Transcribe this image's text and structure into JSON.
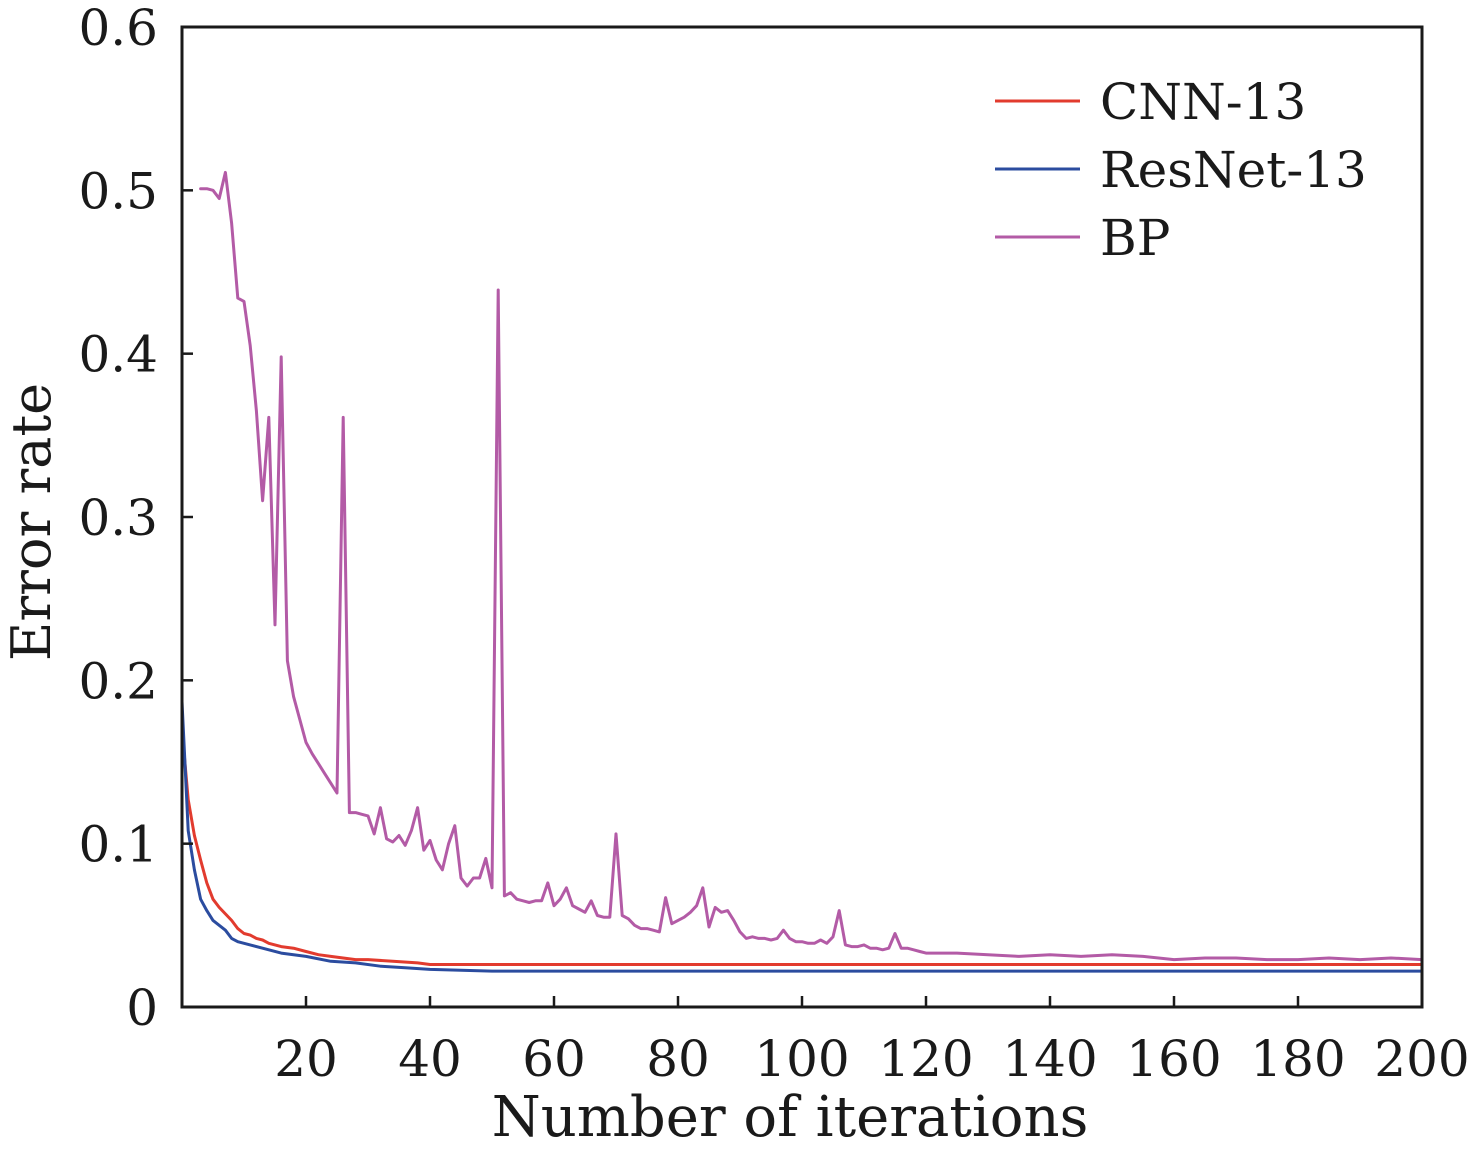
{
  "chart_data": {
    "type": "line",
    "xlabel": "Number of iterations",
    "ylabel": "Error rate",
    "xlim": [
      0,
      200
    ],
    "ylim": [
      0,
      0.6
    ],
    "xticks": [
      20,
      40,
      60,
      80,
      100,
      120,
      140,
      160,
      180,
      200
    ],
    "xtick_labels": [
      "20",
      "40",
      "60",
      "80",
      "100",
      "120",
      "140",
      "160",
      "180",
      "200"
    ],
    "yticks": [
      0,
      0.1,
      0.2,
      0.3,
      0.4,
      0.5,
      0.6
    ],
    "ytick_labels": [
      "0",
      "0.1",
      "0.2",
      "0.3",
      "0.4",
      "0.5",
      "0.6"
    ],
    "grid": false,
    "legend": "top-right",
    "series": [
      {
        "name": "CNN-13",
        "color": "#e23b2e",
        "points": [
          [
            0,
            0.17
          ],
          [
            1,
            0.127
          ],
          [
            2,
            0.105
          ],
          [
            3,
            0.09
          ],
          [
            4,
            0.076
          ],
          [
            5,
            0.066
          ],
          [
            6,
            0.061
          ],
          [
            7,
            0.057
          ],
          [
            8,
            0.053
          ],
          [
            9,
            0.048
          ],
          [
            10,
            0.045
          ],
          [
            11,
            0.044
          ],
          [
            12,
            0.042
          ],
          [
            13,
            0.041
          ],
          [
            14,
            0.039
          ],
          [
            16,
            0.037
          ],
          [
            18,
            0.036
          ],
          [
            20,
            0.034
          ],
          [
            22,
            0.032
          ],
          [
            24,
            0.031
          ],
          [
            26,
            0.03
          ],
          [
            28,
            0.029
          ],
          [
            30,
            0.029
          ],
          [
            34,
            0.028
          ],
          [
            38,
            0.027
          ],
          [
            40,
            0.026
          ],
          [
            44,
            0.026
          ],
          [
            48,
            0.026
          ],
          [
            60,
            0.026
          ],
          [
            80,
            0.026
          ],
          [
            100,
            0.026
          ],
          [
            120,
            0.026
          ],
          [
            140,
            0.026
          ],
          [
            160,
            0.026
          ],
          [
            180,
            0.026
          ],
          [
            200,
            0.026
          ]
        ]
      },
      {
        "name": "ResNet-13",
        "color": "#2b4c9f",
        "points": [
          [
            0,
            0.187
          ],
          [
            1,
            0.108
          ],
          [
            2,
            0.084
          ],
          [
            3,
            0.066
          ],
          [
            4,
            0.059
          ],
          [
            5,
            0.053
          ],
          [
            6,
            0.05
          ],
          [
            7,
            0.047
          ],
          [
            8,
            0.042
          ],
          [
            9,
            0.04
          ],
          [
            11,
            0.038
          ],
          [
            13,
            0.036
          ],
          [
            16,
            0.033
          ],
          [
            20,
            0.031
          ],
          [
            24,
            0.028
          ],
          [
            28,
            0.027
          ],
          [
            32,
            0.025
          ],
          [
            36,
            0.024
          ],
          [
            40,
            0.023
          ],
          [
            50,
            0.022
          ],
          [
            60,
            0.022
          ],
          [
            80,
            0.022
          ],
          [
            100,
            0.022
          ],
          [
            120,
            0.022
          ],
          [
            140,
            0.022
          ],
          [
            160,
            0.022
          ],
          [
            180,
            0.022
          ],
          [
            200,
            0.022
          ]
        ]
      },
      {
        "name": "BP",
        "color": "#b35ba6",
        "points": [
          [
            3,
            0.501
          ],
          [
            4,
            0.501
          ],
          [
            5,
            0.5
          ],
          [
            6,
            0.495
          ],
          [
            7,
            0.511
          ],
          [
            8,
            0.48
          ],
          [
            9,
            0.434
          ],
          [
            10,
            0.432
          ],
          [
            11,
            0.405
          ],
          [
            12,
            0.365
          ],
          [
            13,
            0.31
          ],
          [
            14,
            0.361
          ],
          [
            15,
            0.234
          ],
          [
            16,
            0.398
          ],
          [
            17,
            0.212
          ],
          [
            18,
            0.19
          ],
          [
            19,
            0.176
          ],
          [
            20,
            0.162
          ],
          [
            21,
            0.155
          ],
          [
            22,
            0.149
          ],
          [
            23,
            0.143
          ],
          [
            24,
            0.137
          ],
          [
            25,
            0.131
          ],
          [
            26,
            0.361
          ],
          [
            27,
            0.119
          ],
          [
            28,
            0.119
          ],
          [
            29,
            0.118
          ],
          [
            30,
            0.117
          ],
          [
            31,
            0.106
          ],
          [
            32,
            0.122
          ],
          [
            33,
            0.103
          ],
          [
            34,
            0.101
          ],
          [
            35,
            0.105
          ],
          [
            36,
            0.099
          ],
          [
            37,
            0.108
          ],
          [
            38,
            0.122
          ],
          [
            39,
            0.096
          ],
          [
            40,
            0.102
          ],
          [
            41,
            0.09
          ],
          [
            42,
            0.084
          ],
          [
            43,
            0.1
          ],
          [
            44,
            0.111
          ],
          [
            45,
            0.079
          ],
          [
            46,
            0.074
          ],
          [
            47,
            0.079
          ],
          [
            48,
            0.079
          ],
          [
            49,
            0.091
          ],
          [
            50,
            0.073
          ],
          [
            51,
            0.439
          ],
          [
            52,
            0.068
          ],
          [
            53,
            0.07
          ],
          [
            54,
            0.066
          ],
          [
            55,
            0.065
          ],
          [
            56,
            0.064
          ],
          [
            57,
            0.065
          ],
          [
            58,
            0.065
          ],
          [
            59,
            0.076
          ],
          [
            60,
            0.062
          ],
          [
            61,
            0.066
          ],
          [
            62,
            0.073
          ],
          [
            63,
            0.062
          ],
          [
            64,
            0.06
          ],
          [
            65,
            0.058
          ],
          [
            66,
            0.065
          ],
          [
            67,
            0.056
          ],
          [
            68,
            0.055
          ],
          [
            69,
            0.055
          ],
          [
            70,
            0.106
          ],
          [
            71,
            0.056
          ],
          [
            72,
            0.054
          ],
          [
            73,
            0.05
          ],
          [
            74,
            0.048
          ],
          [
            75,
            0.048
          ],
          [
            76,
            0.047
          ],
          [
            77,
            0.046
          ],
          [
            78,
            0.067
          ],
          [
            79,
            0.051
          ],
          [
            80,
            0.053
          ],
          [
            81,
            0.055
          ],
          [
            82,
            0.058
          ],
          [
            83,
            0.062
          ],
          [
            84,
            0.073
          ],
          [
            85,
            0.049
          ],
          [
            86,
            0.061
          ],
          [
            87,
            0.058
          ],
          [
            88,
            0.059
          ],
          [
            89,
            0.053
          ],
          [
            90,
            0.046
          ],
          [
            91,
            0.042
          ],
          [
            92,
            0.043
          ],
          [
            93,
            0.042
          ],
          [
            94,
            0.042
          ],
          [
            95,
            0.041
          ],
          [
            96,
            0.042
          ],
          [
            97,
            0.047
          ],
          [
            98,
            0.042
          ],
          [
            99,
            0.04
          ],
          [
            100,
            0.04
          ],
          [
            101,
            0.039
          ],
          [
            102,
            0.039
          ],
          [
            103,
            0.041
          ],
          [
            104,
            0.039
          ],
          [
            105,
            0.043
          ],
          [
            106,
            0.059
          ],
          [
            107,
            0.038
          ],
          [
            108,
            0.037
          ],
          [
            109,
            0.037
          ],
          [
            110,
            0.038
          ],
          [
            111,
            0.036
          ],
          [
            112,
            0.036
          ],
          [
            113,
            0.035
          ],
          [
            114,
            0.036
          ],
          [
            115,
            0.045
          ],
          [
            116,
            0.036
          ],
          [
            117,
            0.036
          ],
          [
            118,
            0.035
          ],
          [
            119,
            0.034
          ],
          [
            120,
            0.033
          ],
          [
            125,
            0.033
          ],
          [
            130,
            0.032
          ],
          [
            135,
            0.031
          ],
          [
            140,
            0.032
          ],
          [
            145,
            0.031
          ],
          [
            150,
            0.032
          ],
          [
            155,
            0.031
          ],
          [
            160,
            0.029
          ],
          [
            165,
            0.03
          ],
          [
            170,
            0.03
          ],
          [
            175,
            0.029
          ],
          [
            180,
            0.029
          ],
          [
            185,
            0.03
          ],
          [
            190,
            0.029
          ],
          [
            195,
            0.03
          ],
          [
            200,
            0.029
          ]
        ]
      }
    ]
  }
}
